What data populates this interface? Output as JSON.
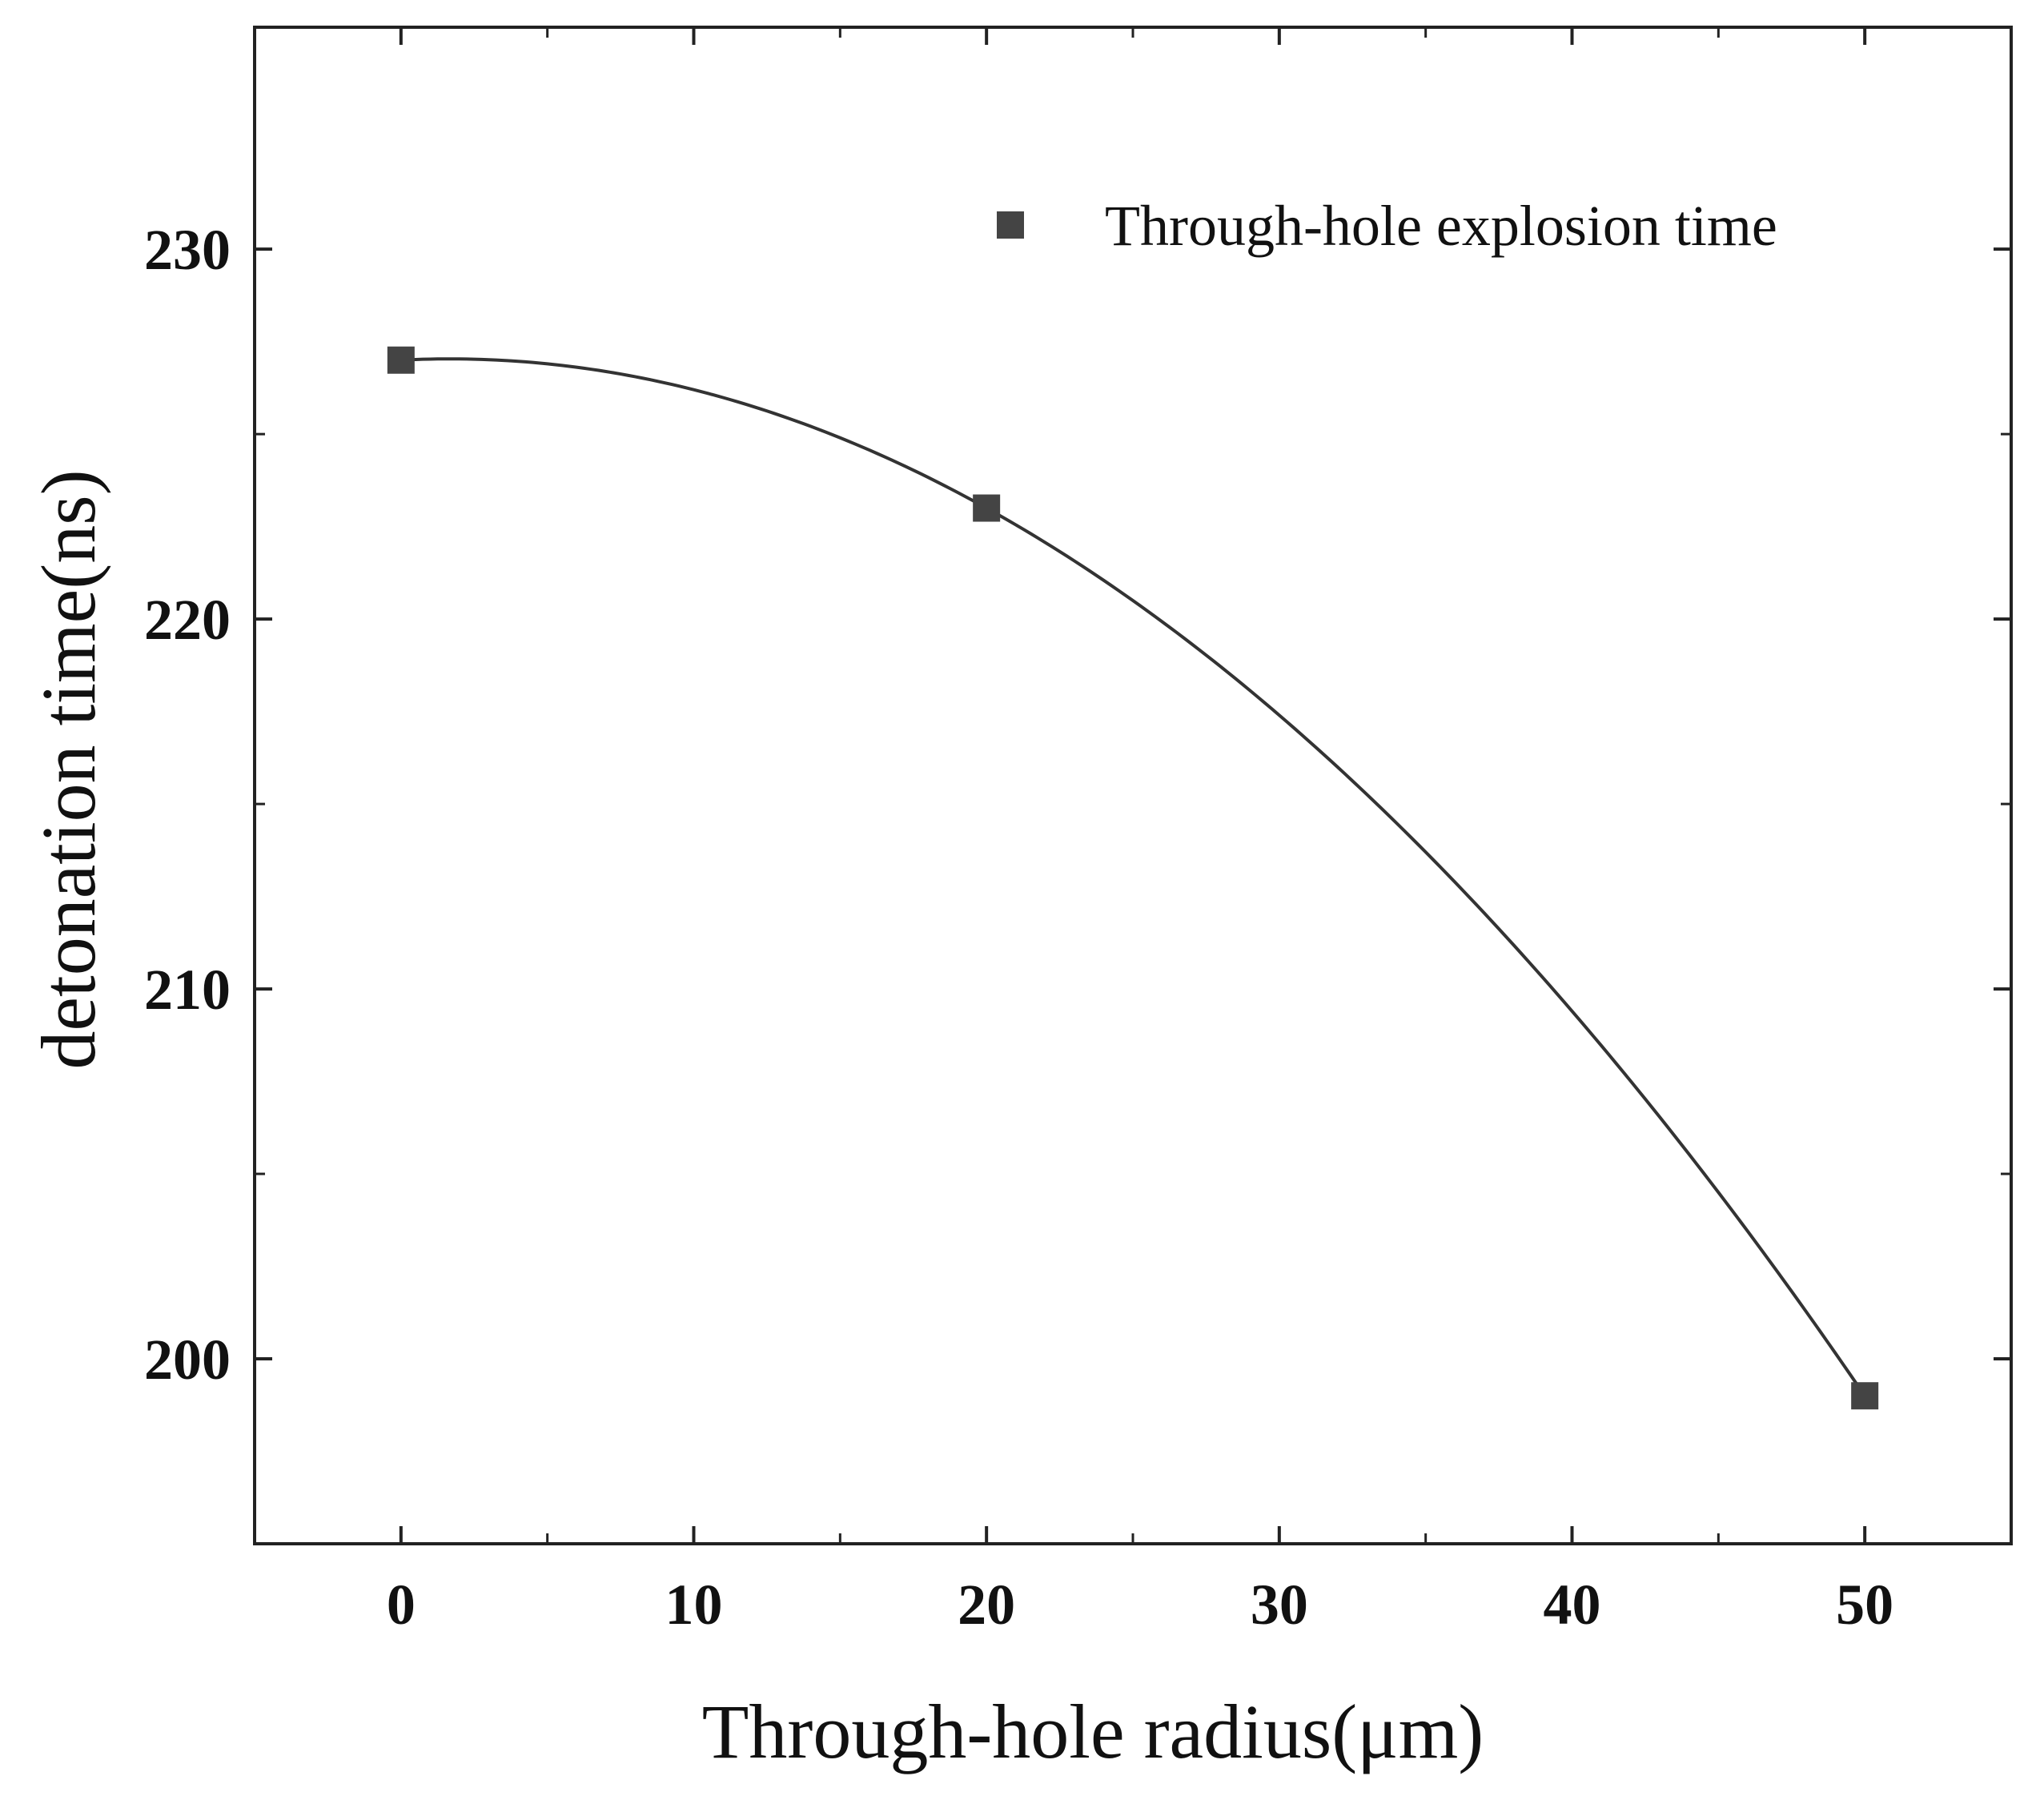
{
  "chart_data": {
    "type": "scatter",
    "xlabel": "Through-hole radius(μm)",
    "ylabel": "detonation time(ns)",
    "xlim": [
      -5,
      55
    ],
    "ylim": [
      195,
      236
    ],
    "x_ticks": [
      0,
      10,
      20,
      30,
      40,
      50
    ],
    "x_tick_labels": [
      "0",
      "10",
      "20",
      "30",
      "40",
      "50"
    ],
    "y_ticks": [
      200,
      210,
      220,
      230
    ],
    "y_tick_labels": [
      "200",
      "210",
      "220",
      "230"
    ],
    "y_minor_ticks": [
      205,
      215,
      225
    ],
    "x_minor_ticks": [
      5,
      15,
      25,
      35,
      45
    ],
    "grid": false,
    "legend_position": "top-right",
    "series": [
      {
        "name": "Through-hole explosion time",
        "marker": "square",
        "color": "#444444",
        "x": [
          0,
          20,
          50
        ],
        "y": [
          227,
          223,
          199
        ]
      }
    ],
    "fit_curve": {
      "type": "quadratic",
      "color": "#333333",
      "points": [
        [
          0,
          227
        ],
        [
          20,
          223
        ],
        [
          50,
          199
        ]
      ]
    }
  }
}
